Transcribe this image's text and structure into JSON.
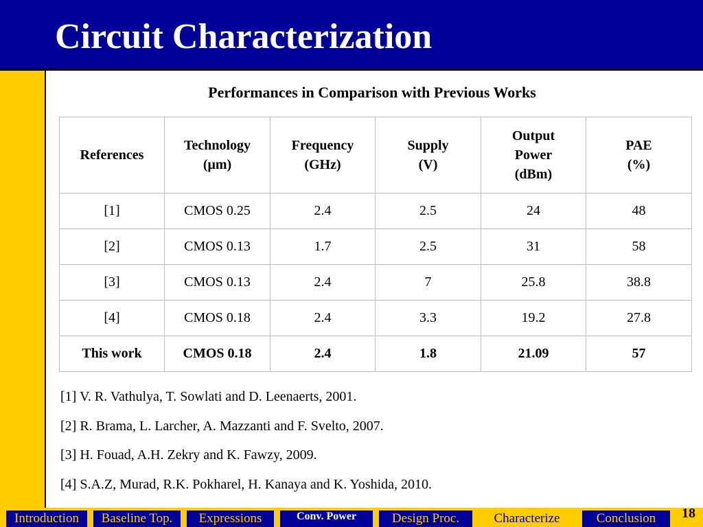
{
  "slide": {
    "title": "Circuit Characterization",
    "subtitle": "Performances in Comparison with Previous Works",
    "page_number": "18"
  },
  "table": {
    "headers": [
      [
        "References"
      ],
      [
        "Technology",
        "(μm)"
      ],
      [
        "Frequency",
        "(GHz)"
      ],
      [
        "Supply",
        "(V)"
      ],
      [
        "Output",
        "Power",
        "(dBm)"
      ],
      [
        "PAE",
        "(%)"
      ]
    ],
    "rows": [
      [
        "[1]",
        "CMOS 0.25",
        "2.4",
        "2.5",
        "24",
        "48"
      ],
      [
        "[2]",
        "CMOS 0.13",
        "1.7",
        "2.5",
        "31",
        "58"
      ],
      [
        "[3]",
        "CMOS 0.13",
        "2.4",
        "7",
        "25.8",
        "38.8"
      ],
      [
        "[4]",
        "CMOS 0.18",
        "2.4",
        "3.3",
        "19.2",
        "27.8"
      ],
      [
        "This work",
        "CMOS 0.18",
        "2.4",
        "1.8",
        "21.09",
        "57"
      ]
    ]
  },
  "references": [
    "[1] V. R. Vathulya, T. Sowlati and D. Leenaerts, 2001.",
    "[2] R. Brama, L. Larcher, A. Mazzanti and F. Svelto, 2007.",
    "[3] H. Fouad, A.H. Zekry and K. Fawzy, 2009.",
    "[4] S.A.Z, Murad, R.K. Pokharel, H. Kanaya and K. Yoshida, 2010."
  ],
  "nav": {
    "tabs": [
      "Introduction",
      "Baseline Top.",
      "Expressions",
      "Conv. Power",
      "Design Proc.",
      "Characterize",
      "Conclusion"
    ],
    "active": "Conv. Power",
    "current": "Characterize"
  },
  "colors": {
    "primary_blue": "#000099",
    "accent_yellow": "#ffcc00",
    "table_border": "#bdbdbd"
  }
}
